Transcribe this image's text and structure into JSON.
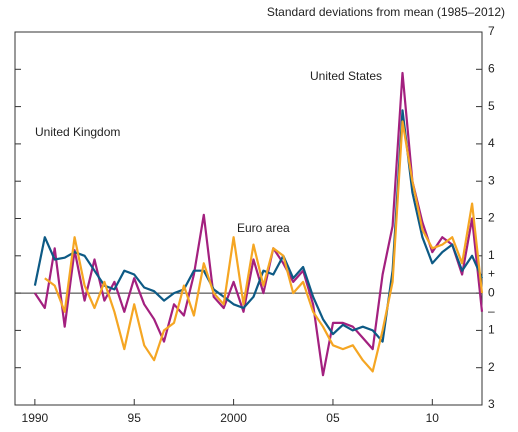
{
  "chart_data": {
    "type": "line",
    "y_label": "Standard deviations from mean (1985–2012)",
    "sign_labels": {
      "plus": "+",
      "minus": "–"
    },
    "x": [
      1990,
      1990.5,
      1991,
      1991.5,
      1992,
      1992.5,
      1993,
      1993.5,
      1994,
      1994.5,
      1995,
      1995.5,
      1996,
      1996.5,
      1997,
      1997.5,
      1998,
      1998.5,
      1999,
      1999.5,
      2000,
      2000.5,
      2001,
      2001.5,
      2002,
      2002.5,
      2003,
      2003.5,
      2004,
      2004.5,
      2005,
      2005.5,
      2006,
      2006.5,
      2007,
      2007.5,
      2008,
      2008.5,
      2009,
      2009.5,
      2010,
      2010.5,
      2011,
      2011.5,
      2012,
      2012.5
    ],
    "series": [
      {
        "name": "United States",
        "color": "#a3207f",
        "values": [
          0.0,
          -0.4,
          1.2,
          -0.9,
          1.15,
          -0.2,
          0.9,
          -0.2,
          0.3,
          -0.5,
          0.4,
          -0.3,
          -0.7,
          -1.3,
          -0.3,
          -0.6,
          0.5,
          2.1,
          -0.1,
          -0.4,
          0.3,
          -0.5,
          0.9,
          0.0,
          1.2,
          0.8,
          0.3,
          0.6,
          -0.3,
          -2.2,
          -0.8,
          -0.8,
          -0.9,
          -1.2,
          -1.5,
          0.5,
          1.8,
          5.9,
          3.0,
          1.9,
          1.1,
          1.5,
          1.3,
          0.5,
          2.0,
          -0.5
        ]
      },
      {
        "name": "United Kingdom",
        "color": "#0d5a85",
        "values": [
          0.2,
          1.5,
          0.9,
          0.95,
          1.1,
          1.0,
          0.6,
          0.2,
          0.1,
          0.6,
          0.5,
          0.15,
          0.05,
          -0.2,
          0.0,
          0.1,
          0.6,
          0.6,
          0.1,
          -0.1,
          -0.3,
          -0.4,
          -0.1,
          0.6,
          0.5,
          1.0,
          0.4,
          0.7,
          -0.1,
          -0.7,
          -1.1,
          -0.85,
          -1.0,
          -0.9,
          -1.0,
          -1.3,
          0.6,
          4.9,
          2.7,
          1.5,
          0.8,
          1.1,
          1.3,
          0.6,
          1.0,
          0.4
        ]
      },
      {
        "name": "Euro area",
        "color": "#f5a623",
        "values": [
          null,
          0.4,
          0.2,
          -0.5,
          1.5,
          0.2,
          -0.4,
          0.3,
          -0.5,
          -1.5,
          -0.3,
          -1.4,
          -1.8,
          -1.0,
          -0.8,
          0.2,
          -0.6,
          0.8,
          0.0,
          -0.3,
          1.5,
          -0.3,
          1.3,
          0.2,
          1.2,
          1.0,
          0.0,
          0.3,
          -0.5,
          -0.9,
          -1.4,
          -1.5,
          -1.4,
          -1.8,
          -2.1,
          -1.0,
          0.3,
          4.6,
          3.0,
          1.7,
          1.2,
          1.3,
          1.5,
          0.8,
          2.4,
          0.0
        ]
      }
    ],
    "xlim": [
      1989,
      2012.5
    ],
    "xticks": [
      1990,
      {
        "value": 1995,
        "label": "95"
      },
      2000,
      {
        "value": 2005,
        "label": "05"
      },
      {
        "value": 2010,
        "label": "10"
      }
    ],
    "ylim": [
      -3,
      7
    ],
    "yticks": [
      7,
      6,
      5,
      4,
      3,
      2,
      1,
      0,
      {
        "value": -1,
        "label": "1"
      },
      {
        "value": -2,
        "label": "2"
      },
      {
        "value": -3,
        "label": "3"
      }
    ]
  }
}
